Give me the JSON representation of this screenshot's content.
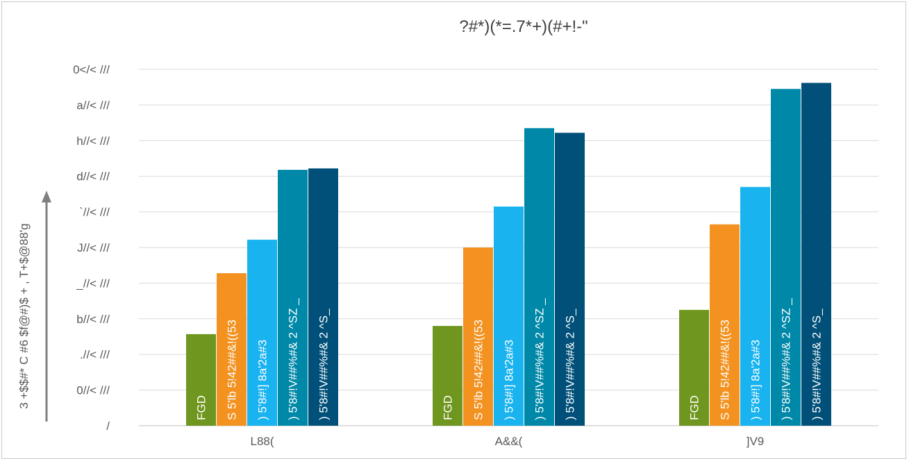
{
  "chart_data": {
    "type": "bar",
    "title": "?#*)(*=.7*+)(#+!-\"",
    "ylabel": "3 +$$#* C #6 $f@#)$ + , T+$@88'g",
    "xlabel": "",
    "categories": [
      "L88(",
      "A&&(",
      "]V9"
    ],
    "y_tick_labels": [
      "/",
      "0//< ///",
      ".//< ///",
      "b//< ///",
      "_//< ///",
      "J//< ///",
      "`//< ///",
      "d//< ///",
      "h//< ///",
      "a//< ///",
      "0</< ///"
    ],
    "ylim": [
      0,
      10
    ],
    "grid": true,
    "legend": "none",
    "series": [
      {
        "name": "FGD",
        "color": "#6f961e",
        "values": [
          2.57,
          2.8,
          3.25
        ]
      },
      {
        "name": "S 5'lb  5!42##&!((53",
        "color": "#f39220",
        "values": [
          4.28,
          5.0,
          5.65
        ]
      },
      {
        "name": ")  5'8#!]  8a'2a#3",
        "color": "#19b3f0",
        "values": [
          5.22,
          6.15,
          6.7
        ]
      },
      {
        "name": ")  5'8#!V##%#& 2 ^SZ _",
        "color": "#0088a8",
        "values": [
          7.18,
          8.35,
          9.45
        ]
      },
      {
        "name": ")  5'8#!V##%#& 2 ^S_",
        "color": "#005079",
        "values": [
          7.22,
          8.22,
          9.62
        ]
      }
    ]
  }
}
